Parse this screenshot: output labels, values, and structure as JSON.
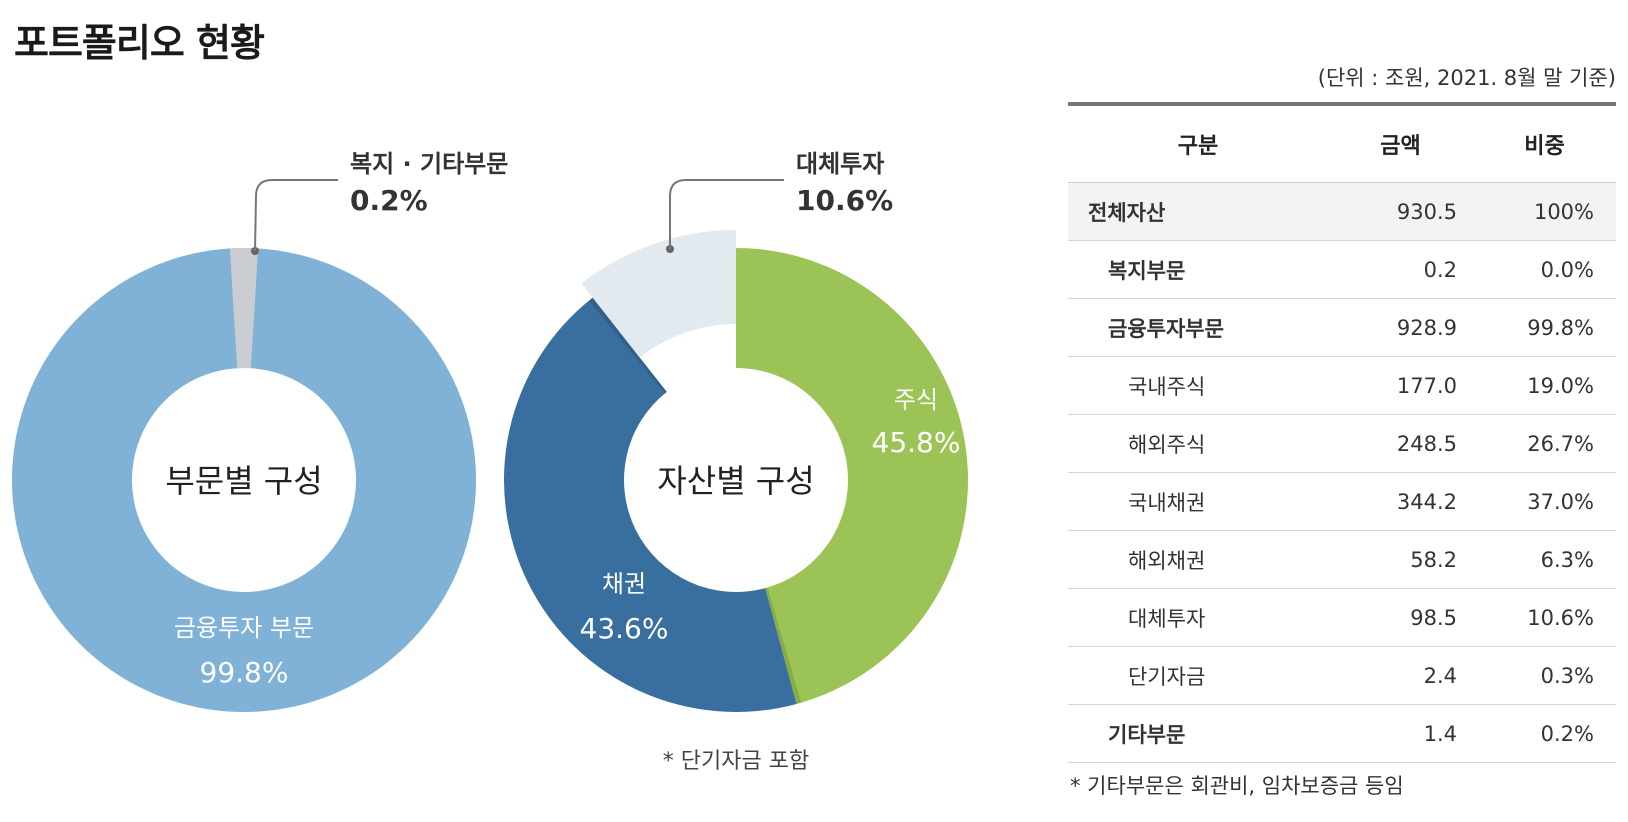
{
  "page": {
    "title": "포트폴리오 현황",
    "unit_note": "(단위 : 조원, 2021. 8월 말 기준)"
  },
  "chart_data": [
    {
      "type": "donut",
      "center_label": "부문별 구성",
      "slices": [
        {
          "label": "금융투자 부문",
          "value": 99.8,
          "display": "99.8%",
          "color": "#7fb2d6",
          "callout": false
        },
        {
          "label": "복지 · 기타부문",
          "value": 0.2,
          "display": "0.2%",
          "color": "#c9ccd0",
          "callout": true
        }
      ]
    },
    {
      "type": "donut",
      "center_label": "자산별 구성",
      "footnote": "* 단기자금 포함",
      "slices": [
        {
          "label": "주식",
          "value": 45.8,
          "display": "45.8%",
          "color": "#9bc355",
          "callout": false
        },
        {
          "label": "채권",
          "value": 43.6,
          "display": "43.6%",
          "color": "#386f9e",
          "callout": false
        },
        {
          "label": "대체투자",
          "value": 10.6,
          "display": "10.6%",
          "color": "#e2e9ef",
          "callout": true
        }
      ]
    }
  ],
  "table": {
    "headers": [
      "구분",
      "금액",
      "비중"
    ],
    "rows": [
      {
        "label": "전체자산",
        "amount": "930.5",
        "share": "100%",
        "level": 0
      },
      {
        "label": "복지부문",
        "amount": "0.2",
        "share": "0.0%",
        "level": 1
      },
      {
        "label": "금융투자부문",
        "amount": "928.9",
        "share": "99.8%",
        "level": 1
      },
      {
        "label": "국내주식",
        "amount": "177.0",
        "share": "19.0%",
        "level": 2
      },
      {
        "label": "해외주식",
        "amount": "248.5",
        "share": "26.7%",
        "level": 2
      },
      {
        "label": "국내채권",
        "amount": "344.2",
        "share": "37.0%",
        "level": 2
      },
      {
        "label": "해외채권",
        "amount": "58.2",
        "share": "6.3%",
        "level": 2
      },
      {
        "label": "대체투자",
        "amount": "98.5",
        "share": "10.6%",
        "level": 2
      },
      {
        "label": "단기자금",
        "amount": "2.4",
        "share": "0.3%",
        "level": 2
      },
      {
        "label": "기타부문",
        "amount": "1.4",
        "share": "0.2%",
        "level": 1
      }
    ],
    "footnote": "* 기타부문은 회관비, 임차보증금 등임"
  }
}
